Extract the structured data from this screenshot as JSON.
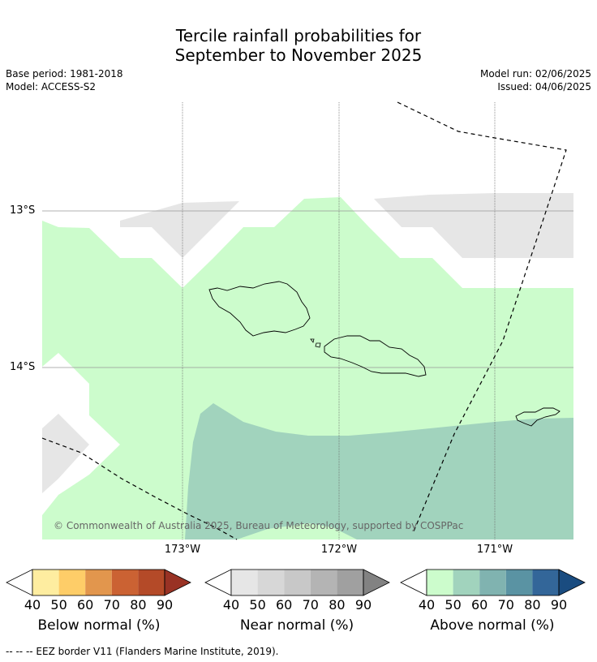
{
  "title": {
    "line1": "Tercile rainfall probabilities for",
    "line2": "September to November 2025"
  },
  "meta": {
    "base_period": "Base period: 1981-2018",
    "model": "Model: ACCESS-S2",
    "model_run": "Model run: 02/06/2025",
    "issued": "Issued: 04/06/2025"
  },
  "map": {
    "lat_labels": [
      "13°S",
      "14°S"
    ],
    "lon_labels": [
      "173°W",
      "172°W",
      "171°W"
    ],
    "copyright": "© Commonwealth of Australia 2025, Bureau of Meteorology, supported by COSPPac",
    "colors": {
      "above_50": "#ccfccc",
      "above_60": "#a1d3bd",
      "near_40": "#e6e6e6"
    }
  },
  "colorbars": [
    {
      "label": "Below normal (%)",
      "ticks": [
        "40",
        "50",
        "60",
        "70",
        "80",
        "90"
      ],
      "colors": [
        "#ffffff",
        "#feeda0",
        "#fecd68",
        "#e2964d",
        "#cb6233",
        "#b44a28",
        "#993224"
      ]
    },
    {
      "label": "Near normal (%)",
      "ticks": [
        "40",
        "50",
        "60",
        "70",
        "80",
        "90"
      ],
      "colors": [
        "#ffffff",
        "#e6e6e6",
        "#d7d7d7",
        "#c8c8c8",
        "#b4b4b4",
        "#a0a0a0",
        "#828282"
      ]
    },
    {
      "label": "Above normal (%)",
      "ticks": [
        "40",
        "50",
        "60",
        "70",
        "80",
        "90"
      ],
      "colors": [
        "#ffffff",
        "#ccfccc",
        "#a1d3bd",
        "#80b3b0",
        "#5a93a3",
        "#336699",
        "#1a4c80"
      ]
    }
  ],
  "footnote": "--  --  -- EEZ border V11 (Flanders Marine Institute, 2019)."
}
